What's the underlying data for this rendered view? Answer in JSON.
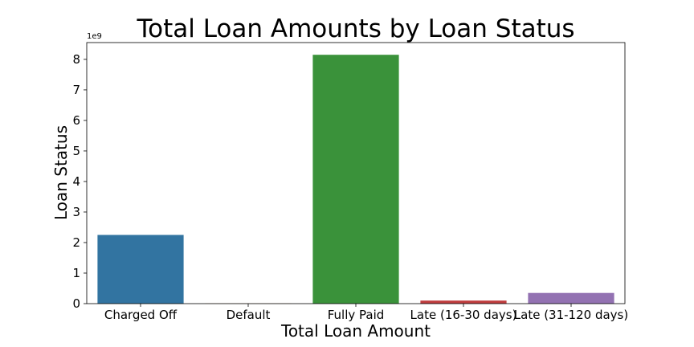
{
  "chart_data": {
    "type": "bar",
    "title": "Total Loan Amounts by Loan Status",
    "xlabel": "Total Loan Amount",
    "ylabel": "Loan Status",
    "y_offset_label": "1e9",
    "categories": [
      "Charged Off",
      "Default",
      "Fully Paid",
      "Late (16-30 days)",
      "Late (31-120 days)"
    ],
    "values": [
      2.25,
      0.005,
      8.15,
      0.1,
      0.35
    ],
    "colors": [
      "#3274a1",
      "#e1812c",
      "#3a923a",
      "#c03d3e",
      "#9372b2"
    ],
    "ylim": [
      0,
      8.55
    ],
    "yticks": [
      "0",
      "1",
      "2",
      "3",
      "4",
      "5",
      "6",
      "7",
      "8"
    ],
    "grid": false,
    "legend": "none"
  }
}
